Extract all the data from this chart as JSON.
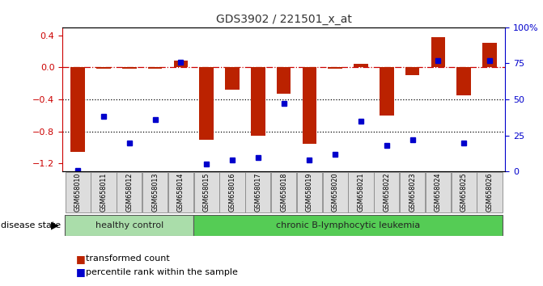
{
  "title": "GDS3902 / 221501_x_at",
  "samples": [
    "GSM658010",
    "GSM658011",
    "GSM658012",
    "GSM658013",
    "GSM658014",
    "GSM658015",
    "GSM658016",
    "GSM658017",
    "GSM658018",
    "GSM658019",
    "GSM658020",
    "GSM658021",
    "GSM658022",
    "GSM658023",
    "GSM658024",
    "GSM658025",
    "GSM658026"
  ],
  "bar_values": [
    -1.05,
    -0.02,
    -0.02,
    -0.02,
    0.08,
    -0.9,
    -0.28,
    -0.85,
    -0.33,
    -0.95,
    -0.02,
    0.04,
    -0.6,
    -0.1,
    0.38,
    -0.35,
    0.3
  ],
  "percentile_values": [
    1,
    38,
    20,
    36,
    76,
    5,
    8,
    10,
    47,
    8,
    12,
    35,
    18,
    22,
    77,
    20,
    77
  ],
  "ylim_left": [
    -1.3,
    0.5
  ],
  "ylim_right": [
    0,
    100
  ],
  "yticks_left": [
    -1.2,
    -0.8,
    -0.4,
    0.0,
    0.4
  ],
  "yticks_right": [
    0,
    25,
    50,
    75,
    100
  ],
  "bar_color": "#bb2200",
  "dot_color": "#0000cc",
  "dashed_line_color": "#cc0000",
  "dotted_line_color": "#000000",
  "group1_label": "healthy control",
  "group1_count": 5,
  "group2_label": "chronic B-lymphocytic leukemia",
  "group2_count": 12,
  "disease_state_label": "disease state",
  "legend1": "transformed count",
  "legend2": "percentile rank within the sample",
  "group1_color": "#aaddaa",
  "group2_color": "#55cc55",
  "title_color": "#333333",
  "right_axis_color": "#0000cc",
  "left_axis_color": "#cc0000"
}
